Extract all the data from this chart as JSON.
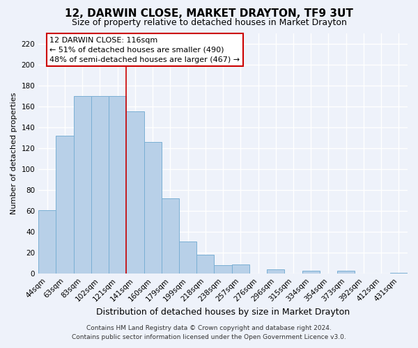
{
  "title": "12, DARWIN CLOSE, MARKET DRAYTON, TF9 3UT",
  "subtitle": "Size of property relative to detached houses in Market Drayton",
  "xlabel": "Distribution of detached houses by size in Market Drayton",
  "ylabel": "Number of detached properties",
  "bar_labels": [
    "44sqm",
    "63sqm",
    "83sqm",
    "102sqm",
    "121sqm",
    "141sqm",
    "160sqm",
    "179sqm",
    "199sqm",
    "218sqm",
    "238sqm",
    "257sqm",
    "276sqm",
    "296sqm",
    "315sqm",
    "334sqm",
    "354sqm",
    "373sqm",
    "392sqm",
    "412sqm",
    "431sqm"
  ],
  "bar_values": [
    61,
    132,
    170,
    170,
    170,
    155,
    126,
    72,
    31,
    18,
    8,
    9,
    0,
    4,
    0,
    3,
    0,
    3,
    0,
    0,
    1
  ],
  "bar_color": "#b8d0e8",
  "bar_edge_color": "#7aafd4",
  "vline_x": 4.5,
  "vline_color": "#cc0000",
  "ylim": [
    0,
    230
  ],
  "yticks": [
    0,
    20,
    40,
    60,
    80,
    100,
    120,
    140,
    160,
    180,
    200,
    220
  ],
  "annotation_title": "12 DARWIN CLOSE: 116sqm",
  "annotation_line1": "← 51% of detached houses are smaller (490)",
  "annotation_line2": "48% of semi-detached houses are larger (467) →",
  "annotation_box_facecolor": "#ffffff",
  "annotation_box_edgecolor": "#cc0000",
  "footer1": "Contains HM Land Registry data © Crown copyright and database right 2024.",
  "footer2": "Contains public sector information licensed under the Open Government Licence v3.0.",
  "background_color": "#eef2fa",
  "grid_color": "#ffffff",
  "title_fontsize": 11,
  "subtitle_fontsize": 9,
  "xlabel_fontsize": 9,
  "ylabel_fontsize": 8,
  "tick_fontsize": 7.5,
  "annotation_fontsize": 8,
  "footer_fontsize": 6.5
}
